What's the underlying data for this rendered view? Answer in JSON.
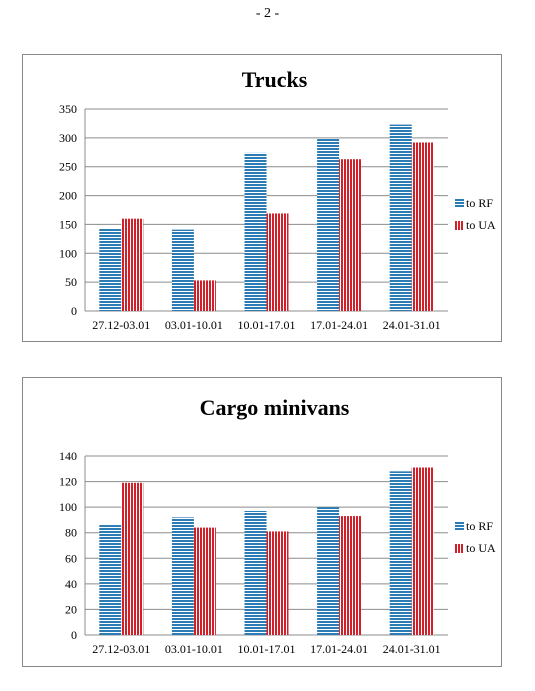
{
  "page_number": "- 2 -",
  "colors": {
    "to_rf": "#2B7BB5",
    "to_ua": "#D0202A",
    "grid": "#8c8c8c"
  },
  "chart_data": [
    {
      "type": "bar",
      "title": "Trucks",
      "categories": [
        "27.12-03.01",
        "03.01-10.01",
        "10.01-17.01",
        "17.01-24.01",
        "24.01-31.01"
      ],
      "series": [
        {
          "name": "to RF",
          "values": [
            143,
            141,
            274,
            299,
            323
          ]
        },
        {
          "name": "to UA",
          "values": [
            160,
            53,
            169,
            263,
            292
          ]
        }
      ],
      "ylim": [
        0,
        350
      ],
      "yticks": [
        0,
        50,
        100,
        150,
        200,
        250,
        300,
        350
      ],
      "grid": true,
      "legend": "right"
    },
    {
      "type": "bar",
      "title": "Cargo minivans",
      "categories": [
        "27.12-03.01",
        "03.01-10.01",
        "10.01-17.01",
        "17.01-24.01",
        "24.01-31.01"
      ],
      "series": [
        {
          "name": "to RF",
          "values": [
            86,
            92,
            97,
            100,
            128
          ]
        },
        {
          "name": "to UA",
          "values": [
            119,
            84,
            81,
            93,
            131
          ]
        }
      ],
      "ylim": [
        0,
        140
      ],
      "yticks": [
        0,
        20,
        40,
        60,
        80,
        100,
        120,
        140
      ],
      "grid": true,
      "legend": "right"
    }
  ]
}
